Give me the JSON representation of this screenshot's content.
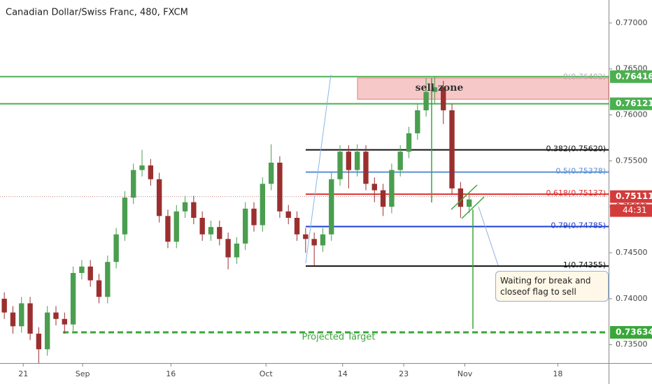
{
  "chart_data": {
    "type": "candlestick",
    "title": "Canadian Dollar/Swiss Franc, 480, FXCM",
    "up_color": "#4a9e4f",
    "down_color": "#9b2f2f",
    "xlim": [
      -0.5,
      70.2
    ],
    "ylim": [
      0.733,
      0.7725
    ],
    "xticks": [
      {
        "value": 2.2,
        "label": "21"
      },
      {
        "value": 9.1,
        "label": "Sep"
      },
      {
        "value": 19.35,
        "label": "16"
      },
      {
        "value": 30.4,
        "label": "Oct"
      },
      {
        "value": 39.3,
        "label": "14"
      },
      {
        "value": 46.4,
        "label": "23"
      },
      {
        "value": 53.5,
        "label": "Nov"
      },
      {
        "value": 64.3,
        "label": "18"
      }
    ],
    "yticks": [
      {
        "value": 0.77,
        "label": "0.77000"
      },
      {
        "value": 0.765,
        "label": "0.76500"
      },
      {
        "value": 0.76,
        "label": "0.76000"
      },
      {
        "value": 0.755,
        "label": "0.75500"
      },
      {
        "value": 0.75,
        "label": "0.75000"
      },
      {
        "value": 0.745,
        "label": "0.74500"
      },
      {
        "value": 0.74,
        "label": "0.74000"
      },
      {
        "value": 0.735,
        "label": "0.73500"
      }
    ],
    "candles": [
      {
        "o": 0.74,
        "h": 0.7407,
        "l": 0.7378,
        "c": 0.7385
      },
      {
        "o": 0.7385,
        "h": 0.7392,
        "l": 0.7362,
        "c": 0.737
      },
      {
        "o": 0.737,
        "h": 0.7402,
        "l": 0.7363,
        "c": 0.7395
      },
      {
        "o": 0.7395,
        "h": 0.7402,
        "l": 0.7355,
        "c": 0.7362
      },
      {
        "o": 0.7362,
        "h": 0.7369,
        "l": 0.733,
        "c": 0.7345
      },
      {
        "o": 0.7345,
        "h": 0.7392,
        "l": 0.7338,
        "c": 0.7385
      },
      {
        "o": 0.7385,
        "h": 0.7392,
        "l": 0.7371,
        "c": 0.7378
      },
      {
        "o": 0.7378,
        "h": 0.7385,
        "l": 0.7362,
        "c": 0.7372
      },
      {
        "o": 0.7372,
        "h": 0.7435,
        "l": 0.7365,
        "c": 0.7428
      },
      {
        "o": 0.7428,
        "h": 0.7442,
        "l": 0.7421,
        "c": 0.7435
      },
      {
        "o": 0.7435,
        "h": 0.7442,
        "l": 0.7413,
        "c": 0.742
      },
      {
        "o": 0.742,
        "h": 0.7427,
        "l": 0.7395,
        "c": 0.7402
      },
      {
        "o": 0.7402,
        "h": 0.7447,
        "l": 0.7395,
        "c": 0.744
      },
      {
        "o": 0.744,
        "h": 0.7477,
        "l": 0.7433,
        "c": 0.747
      },
      {
        "o": 0.747,
        "h": 0.7517,
        "l": 0.7463,
        "c": 0.751
      },
      {
        "o": 0.751,
        "h": 0.7547,
        "l": 0.7503,
        "c": 0.754
      },
      {
        "o": 0.754,
        "h": 0.7562,
        "l": 0.7533,
        "c": 0.7545
      },
      {
        "o": 0.7545,
        "h": 0.7552,
        "l": 0.7523,
        "c": 0.753
      },
      {
        "o": 0.753,
        "h": 0.7537,
        "l": 0.7483,
        "c": 0.749
      },
      {
        "o": 0.749,
        "h": 0.7497,
        "l": 0.7455,
        "c": 0.7462
      },
      {
        "o": 0.7462,
        "h": 0.7502,
        "l": 0.7455,
        "c": 0.7495
      },
      {
        "o": 0.7495,
        "h": 0.7512,
        "l": 0.7488,
        "c": 0.7505
      },
      {
        "o": 0.7505,
        "h": 0.7512,
        "l": 0.7481,
        "c": 0.7488
      },
      {
        "o": 0.7488,
        "h": 0.7495,
        "l": 0.7463,
        "c": 0.747
      },
      {
        "o": 0.747,
        "h": 0.7485,
        "l": 0.7463,
        "c": 0.7478
      },
      {
        "o": 0.7478,
        "h": 0.7485,
        "l": 0.7458,
        "c": 0.7465
      },
      {
        "o": 0.7465,
        "h": 0.7472,
        "l": 0.7432,
        "c": 0.7445
      },
      {
        "o": 0.7445,
        "h": 0.7467,
        "l": 0.7438,
        "c": 0.746
      },
      {
        "o": 0.746,
        "h": 0.7505,
        "l": 0.7453,
        "c": 0.7498
      },
      {
        "o": 0.7498,
        "h": 0.7505,
        "l": 0.7473,
        "c": 0.748
      },
      {
        "o": 0.748,
        "h": 0.7532,
        "l": 0.7473,
        "c": 0.7525
      },
      {
        "o": 0.7525,
        "h": 0.7568,
        "l": 0.7518,
        "c": 0.7548
      },
      {
        "o": 0.7548,
        "h": 0.7555,
        "l": 0.7488,
        "c": 0.7495
      },
      {
        "o": 0.7495,
        "h": 0.7502,
        "l": 0.7481,
        "c": 0.7488
      },
      {
        "o": 0.7488,
        "h": 0.7495,
        "l": 0.7463,
        "c": 0.747
      },
      {
        "o": 0.747,
        "h": 0.7477,
        "l": 0.745,
        "c": 0.7465
      },
      {
        "o": 0.7465,
        "h": 0.7472,
        "l": 0.7436,
        "c": 0.7458
      },
      {
        "o": 0.7458,
        "h": 0.7477,
        "l": 0.7451,
        "c": 0.747
      },
      {
        "o": 0.747,
        "h": 0.7537,
        "l": 0.7463,
        "c": 0.753
      },
      {
        "o": 0.753,
        "h": 0.7567,
        "l": 0.7523,
        "c": 0.756
      },
      {
        "o": 0.756,
        "h": 0.7567,
        "l": 0.752,
        "c": 0.754
      },
      {
        "o": 0.754,
        "h": 0.7568,
        "l": 0.7533,
        "c": 0.756
      },
      {
        "o": 0.756,
        "h": 0.7567,
        "l": 0.7518,
        "c": 0.7525
      },
      {
        "o": 0.7525,
        "h": 0.7532,
        "l": 0.7505,
        "c": 0.7518
      },
      {
        "o": 0.7518,
        "h": 0.7525,
        "l": 0.749,
        "c": 0.75
      },
      {
        "o": 0.75,
        "h": 0.7547,
        "l": 0.7493,
        "c": 0.754
      },
      {
        "o": 0.754,
        "h": 0.7567,
        "l": 0.7533,
        "c": 0.756
      },
      {
        "o": 0.756,
        "h": 0.7587,
        "l": 0.7553,
        "c": 0.758
      },
      {
        "o": 0.758,
        "h": 0.7612,
        "l": 0.7573,
        "c": 0.7605
      },
      {
        "o": 0.7605,
        "h": 0.764,
        "l": 0.7598,
        "c": 0.7625
      },
      {
        "o": 0.7625,
        "h": 0.7641,
        "l": 0.7612,
        "c": 0.763
      },
      {
        "o": 0.763,
        "h": 0.7637,
        "l": 0.759,
        "c": 0.7605
      },
      {
        "o": 0.7605,
        "h": 0.7612,
        "l": 0.7513,
        "c": 0.752
      },
      {
        "o": 0.752,
        "h": 0.7527,
        "l": 0.7488,
        "c": 0.75
      },
      {
        "o": 0.75,
        "h": 0.7515,
        "l": 0.7493,
        "c": 0.7508
      }
    ],
    "levels": [
      {
        "value": 0.76416,
        "color": "#4caf50",
        "tag": true
      },
      {
        "value": 0.76121,
        "color": "#4caf50",
        "tag": true
      },
      {
        "value": 0.76402,
        "color": "#b0b0b0",
        "label": "0(0.76402)"
      },
      {
        "value": 0.7562,
        "color": "#111111",
        "label": "0.382(0.75620)"
      },
      {
        "value": 0.75378,
        "color": "#5b8fd6",
        "label": "0.5(0.75378)"
      },
      {
        "value": 0.75137,
        "color": "#e03030",
        "label": "0.618(0.75137)"
      },
      {
        "value": 0.74785,
        "color": "#1e3fd0",
        "label": "0.79(0.74785)"
      },
      {
        "value": 0.74355,
        "color": "#111111",
        "label": "1(0.74355)"
      },
      {
        "value": 0.73634,
        "color": "#3aa63a",
        "tag": true,
        "dashed": true
      }
    ],
    "current_price": 0.75111,
    "countdown": "44:31",
    "sell_zone": {
      "label": "sell zone",
      "top": 0.764,
      "bottom": 0.7617
    },
    "annotations": [
      "Waiting for break and closeof flag to sell",
      "Projected Target"
    ]
  }
}
